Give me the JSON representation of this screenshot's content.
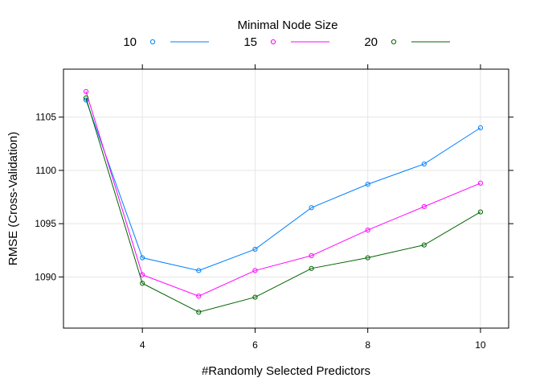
{
  "chart_data": {
    "type": "line",
    "title": "",
    "legend": {
      "title": "Minimal Node Size",
      "placement": "top"
    },
    "xlabel": "#Randomly Selected Predictors",
    "ylabel": "RMSE (Cross-Validation)",
    "x": [
      3,
      4,
      5,
      6,
      7,
      8,
      9,
      10
    ],
    "xlim": [
      2.6,
      10.5
    ],
    "ylim": [
      1085.2,
      1109.5
    ],
    "x_ticks": [
      4,
      6,
      8,
      10
    ],
    "y_ticks": [
      1090,
      1095,
      1100,
      1105
    ],
    "grid": true,
    "series": [
      {
        "name": "10",
        "color": "#0080ff",
        "marker": "circle-open",
        "values": [
          1106.6,
          1091.8,
          1090.6,
          1092.6,
          1096.5,
          1098.7,
          1100.6,
          1104.0
        ]
      },
      {
        "name": "15",
        "color": "#ff00ff",
        "marker": "circle-open",
        "values": [
          1107.4,
          1090.2,
          1088.2,
          1090.6,
          1092.0,
          1094.4,
          1096.6,
          1098.8
        ]
      },
      {
        "name": "20",
        "color": "#006400",
        "marker": "circle-open",
        "values": [
          1106.8,
          1089.4,
          1086.7,
          1088.1,
          1090.8,
          1091.8,
          1093.0,
          1096.1
        ]
      }
    ]
  }
}
